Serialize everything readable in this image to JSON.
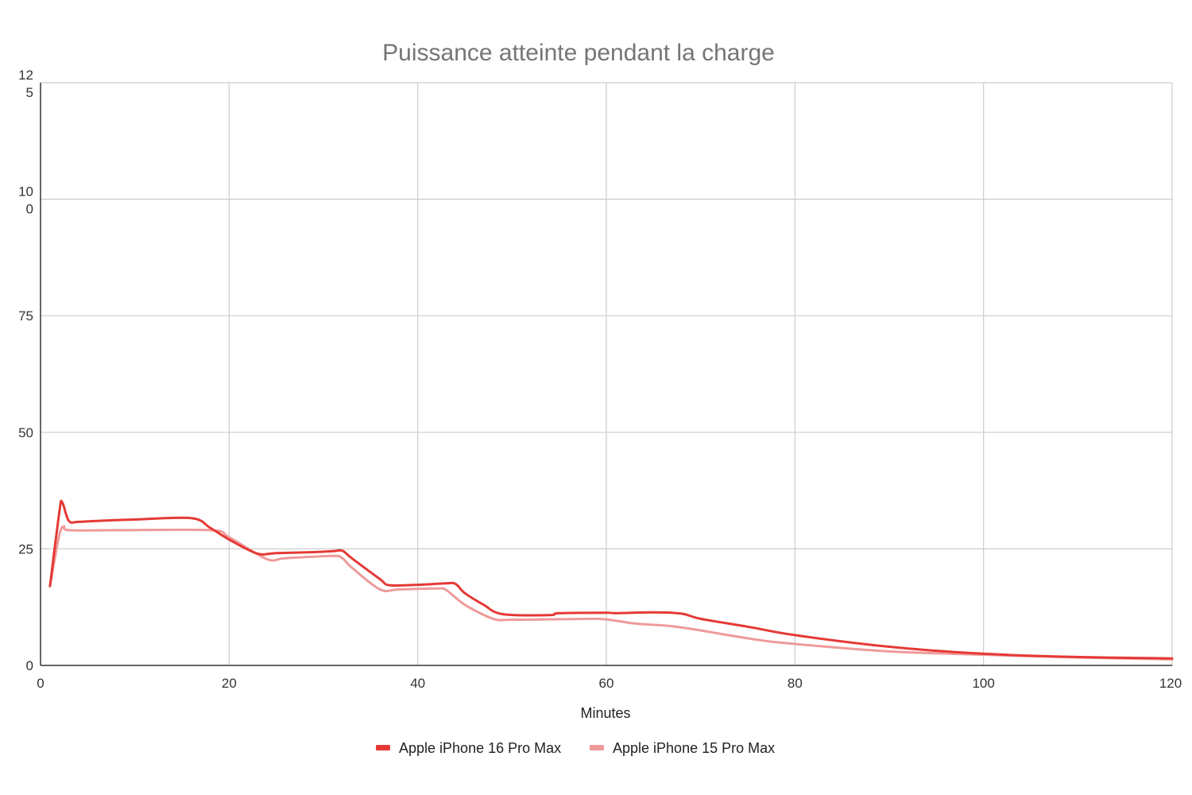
{
  "chart_data": {
    "type": "line",
    "title": "Puissance atteinte pendant la charge",
    "xlabel": "Minutes",
    "ylabel": "",
    "xlim": [
      0,
      120
    ],
    "ylim": [
      0,
      125
    ],
    "x_ticks": [
      {
        "value": 0,
        "label": "0"
      },
      {
        "value": 20,
        "label": "20"
      },
      {
        "value": 40,
        "label": "40"
      },
      {
        "value": 60,
        "label": "60"
      },
      {
        "value": 80,
        "label": "80"
      },
      {
        "value": 100,
        "label": "100"
      },
      {
        "value": 120,
        "label": "120"
      }
    ],
    "y_ticks": [
      {
        "value": 0,
        "line1": "0",
        "line2": ""
      },
      {
        "value": 25,
        "line1": "25",
        "line2": ""
      },
      {
        "value": 50,
        "line1": "50",
        "line2": ""
      },
      {
        "value": 75,
        "line1": "75",
        "line2": ""
      },
      {
        "value": 100,
        "line1": "10",
        "line2": "0"
      },
      {
        "value": 125,
        "line1": "12",
        "line2": "5"
      }
    ],
    "grid": true,
    "legend_position": "bottom",
    "series": [
      {
        "name": "Apple iPhone 16 Pro Max",
        "color": "#e53935",
        "points": [
          [
            1,
            17
          ],
          [
            2,
            33
          ],
          [
            2.3,
            35
          ],
          [
            3,
            31
          ],
          [
            4,
            30.8
          ],
          [
            6,
            31
          ],
          [
            10,
            31.3
          ],
          [
            16,
            31.6
          ],
          [
            18,
            29.5
          ],
          [
            20,
            27
          ],
          [
            23,
            24
          ],
          [
            25,
            24.1
          ],
          [
            29,
            24.3
          ],
          [
            31,
            24.5
          ],
          [
            32,
            24.6
          ],
          [
            33,
            23
          ],
          [
            36,
            18.5
          ],
          [
            37,
            17.2
          ],
          [
            40,
            17.3
          ],
          [
            43,
            17.6
          ],
          [
            44,
            17.5
          ],
          [
            45,
            15.5
          ],
          [
            47,
            13
          ],
          [
            49,
            11
          ],
          [
            54,
            10.8
          ],
          [
            55,
            11.2
          ],
          [
            60,
            11.3
          ],
          [
            61,
            11.2
          ],
          [
            65,
            11.4
          ],
          [
            68,
            11.1
          ],
          [
            70,
            10
          ],
          [
            75,
            8.3
          ],
          [
            80,
            6.5
          ],
          [
            90,
            4
          ],
          [
            100,
            2.5
          ],
          [
            110,
            1.8
          ],
          [
            120,
            1.5
          ]
        ]
      },
      {
        "name": "Apple iPhone 15 Pro Max",
        "color": "#ef9a9a",
        "points": [
          [
            1,
            17
          ],
          [
            2,
            28
          ],
          [
            2.5,
            29.8
          ],
          [
            3,
            29
          ],
          [
            8,
            29
          ],
          [
            18,
            29
          ],
          [
            20,
            27.5
          ],
          [
            24,
            22.8
          ],
          [
            26,
            23
          ],
          [
            31,
            23.5
          ],
          [
            32,
            23
          ],
          [
            33,
            21
          ],
          [
            36,
            16.3
          ],
          [
            38,
            16.3
          ],
          [
            42,
            16.5
          ],
          [
            43,
            16.2
          ],
          [
            45,
            13
          ],
          [
            48,
            10
          ],
          [
            50,
            9.8
          ],
          [
            55,
            9.9
          ],
          [
            59,
            10
          ],
          [
            61,
            9.6
          ],
          [
            63,
            9
          ],
          [
            67,
            8.4
          ],
          [
            70,
            7.5
          ],
          [
            76,
            5.5
          ],
          [
            80,
            4.6
          ],
          [
            90,
            3
          ],
          [
            100,
            2.3
          ],
          [
            110,
            1.7
          ],
          [
            120,
            1.3
          ]
        ]
      }
    ]
  }
}
